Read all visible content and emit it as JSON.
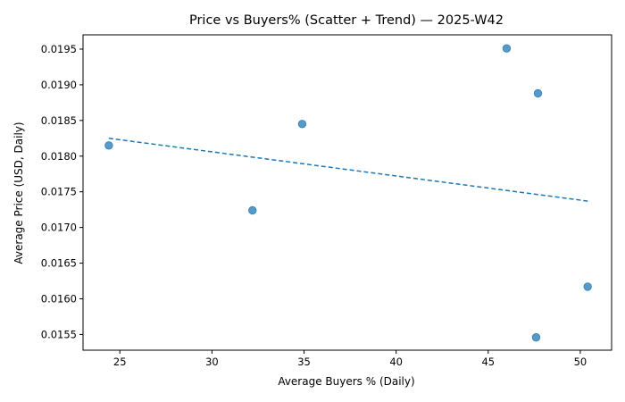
{
  "chart_data": {
    "type": "scatter",
    "title": "Price vs Buyers% (Scatter + Trend) — 2025-W42",
    "xlabel": "Average Buyers % (Daily)",
    "ylabel": "Average Price (USD, Daily)",
    "xlim": [
      23.0,
      51.7
    ],
    "ylim": [
      0.01528,
      0.0197
    ],
    "xticks": [
      25,
      30,
      35,
      40,
      45,
      50
    ],
    "xtick_labels": [
      "25",
      "30",
      "35",
      "40",
      "45",
      "50"
    ],
    "yticks": [
      0.0155,
      0.016,
      0.0165,
      0.017,
      0.0175,
      0.018,
      0.0185,
      0.019,
      0.0195
    ],
    "ytick_labels": [
      "0.0155",
      "0.0160",
      "0.0165",
      "0.0170",
      "0.0175",
      "0.0180",
      "0.0185",
      "0.0190",
      "0.0195"
    ],
    "grid": false,
    "point_color": "#1f77b4",
    "trend_color": "#1f77b4",
    "series": [
      {
        "points": [
          {
            "x": 24.4,
            "y": 0.01815
          },
          {
            "x": 32.2,
            "y": 0.01724
          },
          {
            "x": 34.9,
            "y": 0.01845
          },
          {
            "x": 46.0,
            "y": 0.01951
          },
          {
            "x": 47.7,
            "y": 0.01888
          },
          {
            "x": 47.6,
            "y": 0.01546
          },
          {
            "x": 50.4,
            "y": 0.01617
          }
        ]
      }
    ],
    "trend_line": {
      "x": [
        24.4,
        50.4
      ],
      "y": [
        0.01825,
        0.01737
      ]
    }
  }
}
